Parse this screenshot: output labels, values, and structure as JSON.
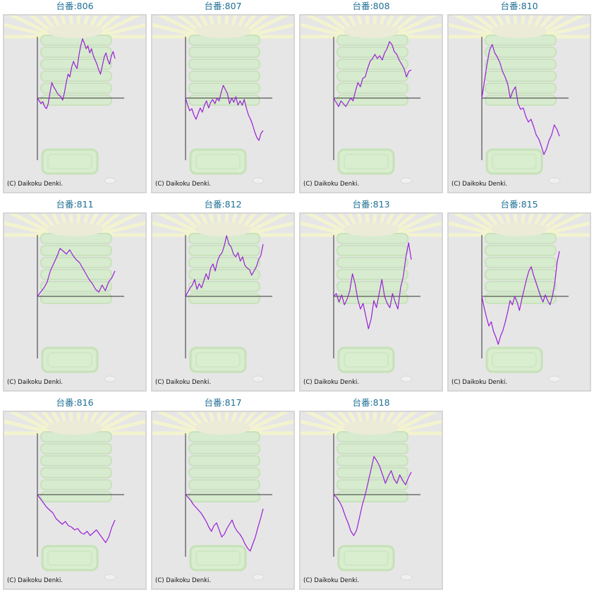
{
  "colors": {
    "title": "#1e6f94",
    "line": "#9a1fd6",
    "axis": "#333333",
    "panel_bg": "#e6e6e6",
    "panel_border": "#d6d6d6"
  },
  "copyright": "(C) Daikoku Denki.",
  "graphs": [
    {
      "title": "台番:806",
      "y": [
        0,
        -4,
        -8,
        -5,
        -12,
        -15,
        -8,
        8,
        22,
        16,
        12,
        7,
        4,
        2,
        -3,
        8,
        22,
        34,
        30,
        44,
        52,
        46,
        42,
        60,
        74,
        84,
        78,
        70,
        74,
        64,
        70,
        60,
        54,
        48,
        40,
        34,
        46,
        58,
        64,
        54,
        48,
        60,
        66,
        56
      ]
    },
    {
      "title": "台番:807",
      "y": [
        0,
        -10,
        -18,
        -15,
        -24,
        -30,
        -22,
        -14,
        -20,
        -10,
        -4,
        -14,
        -6,
        -2,
        -8,
        0,
        -4,
        8,
        18,
        12,
        6,
        -8,
        0,
        -6,
        2,
        -10,
        -4,
        -10,
        -2,
        -14,
        -24,
        -30,
        -38,
        -48,
        -56,
        -60,
        -50,
        -46
      ]
    },
    {
      "title": "台番:808",
      "y": [
        0,
        -6,
        -12,
        -4,
        -8,
        -12,
        -6,
        0,
        -4,
        10,
        22,
        16,
        28,
        30,
        42,
        52,
        56,
        62,
        56,
        60,
        54,
        64,
        70,
        80,
        76,
        66,
        62,
        54,
        48,
        42,
        30,
        38,
        40
      ]
    },
    {
      "title": "台番:810",
      "y": [
        0,
        24,
        48,
        68,
        76,
        64,
        58,
        50,
        38,
        30,
        20,
        0,
        10,
        16,
        -8,
        -16,
        -14,
        -26,
        -34,
        -30,
        -40,
        -52,
        -58,
        -68,
        -80,
        -72,
        -60,
        -52,
        -38,
        -44,
        -54
      ]
    },
    {
      "title": "台番:811",
      "y": [
        0,
        6,
        12,
        20,
        36,
        46,
        56,
        68,
        64,
        60,
        66,
        58,
        52,
        48,
        40,
        32,
        24,
        18,
        10,
        6,
        16,
        8,
        20,
        26,
        36
      ]
    },
    {
      "title": "台番:812",
      "y": [
        0,
        6,
        12,
        16,
        24,
        10,
        18,
        12,
        22,
        32,
        24,
        40,
        46,
        36,
        50,
        58,
        62,
        72,
        86,
        74,
        70,
        60,
        56,
        62,
        50,
        56,
        44,
        40,
        38,
        30,
        36,
        42,
        52,
        58,
        74
      ]
    },
    {
      "title": "台番:813",
      "y": [
        0,
        4,
        -8,
        2,
        -12,
        -4,
        8,
        32,
        18,
        -4,
        -18,
        -10,
        -28,
        -46,
        -32,
        -6,
        -16,
        4,
        24,
        0,
        -10,
        -16,
        4,
        -8,
        -18,
        12,
        28,
        56,
        76,
        52
      ]
    },
    {
      "title": "台番:815",
      "y": [
        0,
        -16,
        -30,
        -42,
        -36,
        -50,
        -58,
        -68,
        -56,
        -48,
        -36,
        -22,
        -6,
        -12,
        0,
        -8,
        -20,
        -4,
        10,
        24,
        36,
        42,
        30,
        20,
        10,
        0,
        -8,
        2,
        -6,
        -12,
        0,
        18,
        48,
        64
      ]
    },
    {
      "title": "台番:816",
      "y": [
        0,
        -6,
        -12,
        -18,
        -22,
        -26,
        -34,
        -38,
        -42,
        -38,
        -44,
        -46,
        -50,
        -48,
        -54,
        -56,
        -52,
        -58,
        -54,
        -50,
        -56,
        -62,
        -68,
        -60,
        -46,
        -36
      ]
    },
    {
      "title": "台番:817",
      "y": [
        0,
        -4,
        -8,
        -14,
        -18,
        -22,
        -26,
        -32,
        -38,
        -46,
        -52,
        -44,
        -40,
        -50,
        -60,
        -56,
        -48,
        -42,
        -36,
        -46,
        -52,
        -56,
        -62,
        -70,
        -76,
        -80,
        -70,
        -60,
        -46,
        -34,
        -20
      ]
    },
    {
      "title": "台番:818",
      "y": [
        0,
        -4,
        -10,
        -18,
        -30,
        -40,
        -52,
        -58,
        -50,
        -32,
        -14,
        0,
        18,
        36,
        54,
        48,
        40,
        28,
        16,
        26,
        34,
        22,
        16,
        28,
        20,
        14,
        24,
        32
      ]
    }
  ]
}
